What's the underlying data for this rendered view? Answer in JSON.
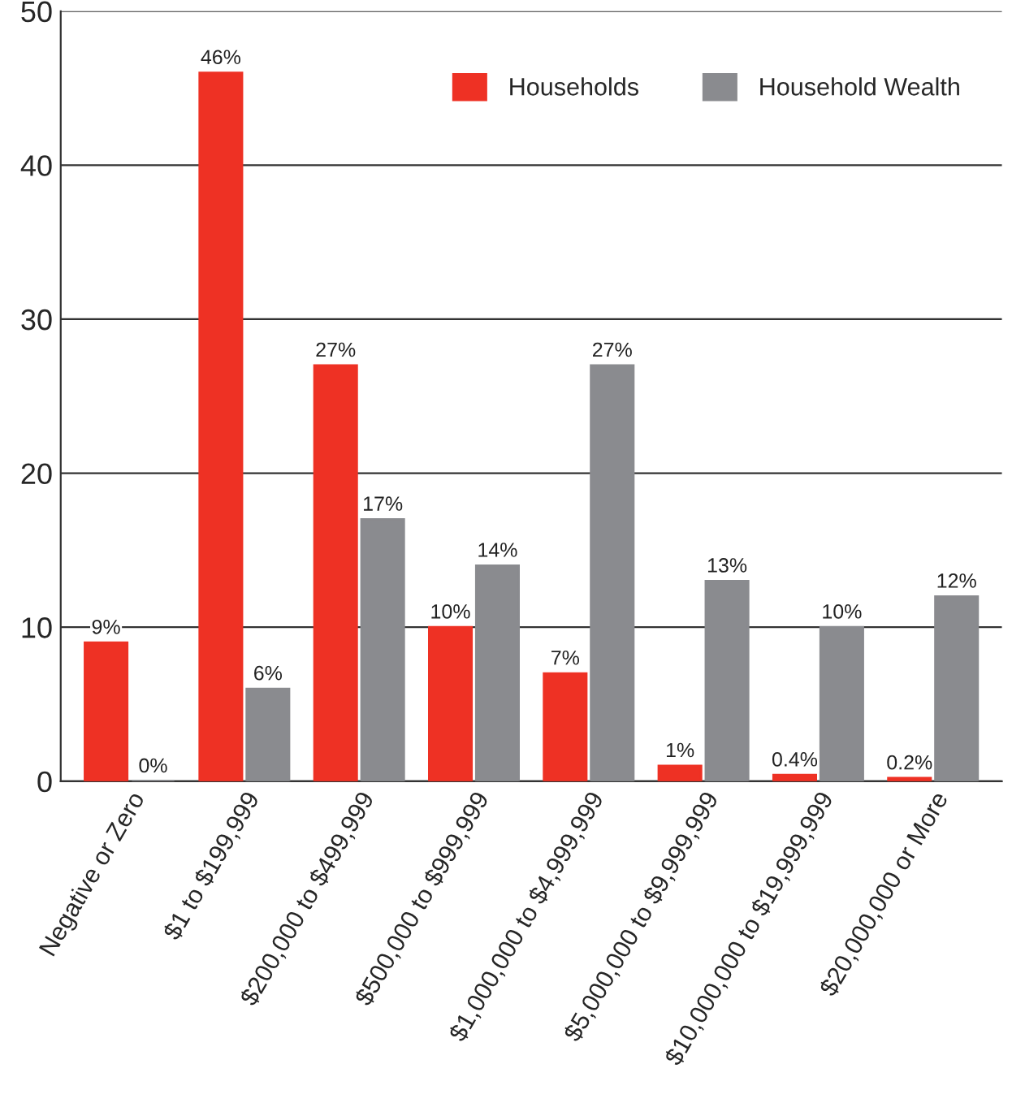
{
  "chart_data": {
    "type": "bar",
    "categories": [
      "Negative or Zero",
      "$1 to $199,999",
      "$200,000 to $499,999",
      "$500,000 to $999,999",
      "$1,000,000 to $4,999,999",
      "$5,000,000 to $9,999,999",
      "$10,000,000 to $19,999,999",
      "$20,000,000 or More"
    ],
    "series": [
      {
        "name": "Households",
        "color": "#ee3124",
        "values": [
          9,
          46,
          27,
          10,
          7,
          1,
          0.4,
          0.2
        ],
        "value_labels": [
          "9%",
          "46%",
          "27%",
          "10%",
          "7%",
          "1%",
          "0.4%",
          "0.2%"
        ]
      },
      {
        "name": "Household Wealth",
        "color": "#8a8b8f",
        "values": [
          0,
          6,
          17,
          14,
          27,
          13,
          10,
          12
        ],
        "value_labels": [
          "0%",
          "6%",
          "17%",
          "14%",
          "27%",
          "13%",
          "10%",
          "12%"
        ]
      }
    ],
    "ylim": [
      0,
      50
    ],
    "yticks": [
      0,
      10,
      20,
      30,
      40,
      50
    ],
    "grid": "y",
    "legend": "top right"
  }
}
